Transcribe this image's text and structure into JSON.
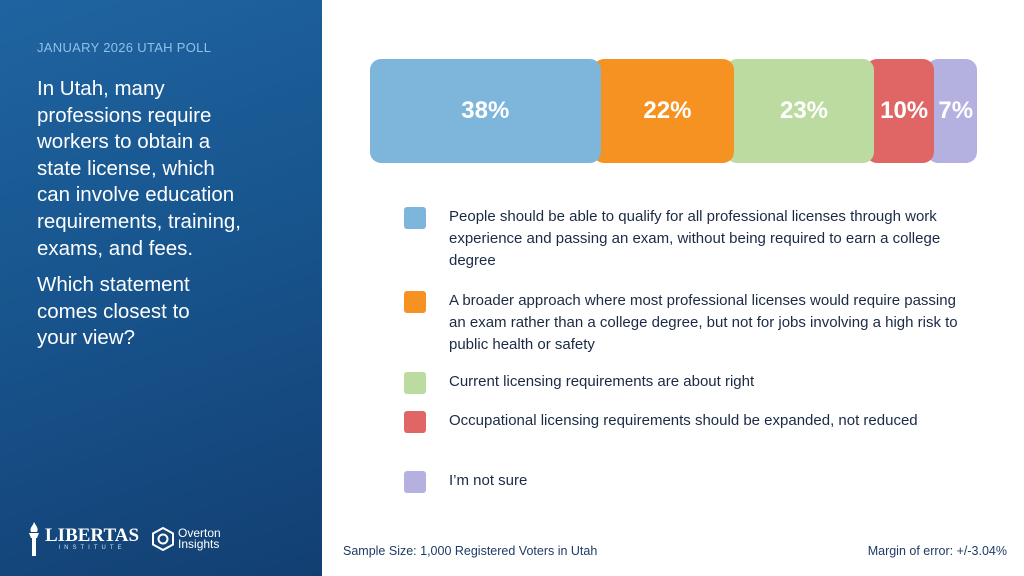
{
  "header": {
    "kicker": "JANUARY 2026 UTAH POLL"
  },
  "question": {
    "intro_lines": [
      "In Utah, many",
      "professions require",
      "workers to obtain a",
      "state license, which",
      "can involve education",
      "requirements, training,",
      "exams, and fees."
    ],
    "prompt_lines": [
      "Which statement",
      "comes closest to",
      "your view?"
    ]
  },
  "logos": {
    "libertas": "LIBERTAS",
    "libertas_sub": "INSTITUTE",
    "overton_1": "Overton",
    "overton_2": "Insights"
  },
  "chart_data": {
    "type": "bar",
    "orientation": "horizontal-stacked",
    "categories": [
      "People should be able to qualify for all professional licenses through work experience and passing an exam, without being required to earn a college degree",
      "A broader approach where most professional licenses would require passing an exam rather than a college degree, but not for jobs involving a high risk to public health or safety",
      "Current licensing requirements are about right",
      "Occupational licensing requirements should be expanded, not reduced",
      "I’m not sure"
    ],
    "values": [
      38,
      22,
      23,
      10,
      7
    ],
    "labels": [
      "38%",
      "22%",
      "23%",
      "10%",
      "7%"
    ],
    "colors": [
      "#7eb5db",
      "#f59222",
      "#bcdba0",
      "#e06666",
      "#b4b1e0"
    ],
    "legend": "below",
    "xlim": [
      0,
      100
    ]
  },
  "footer": {
    "sample": "Sample Size: 1,000 Registered Voters in Utah",
    "margin": "Margin of error: +/-3.04%"
  }
}
